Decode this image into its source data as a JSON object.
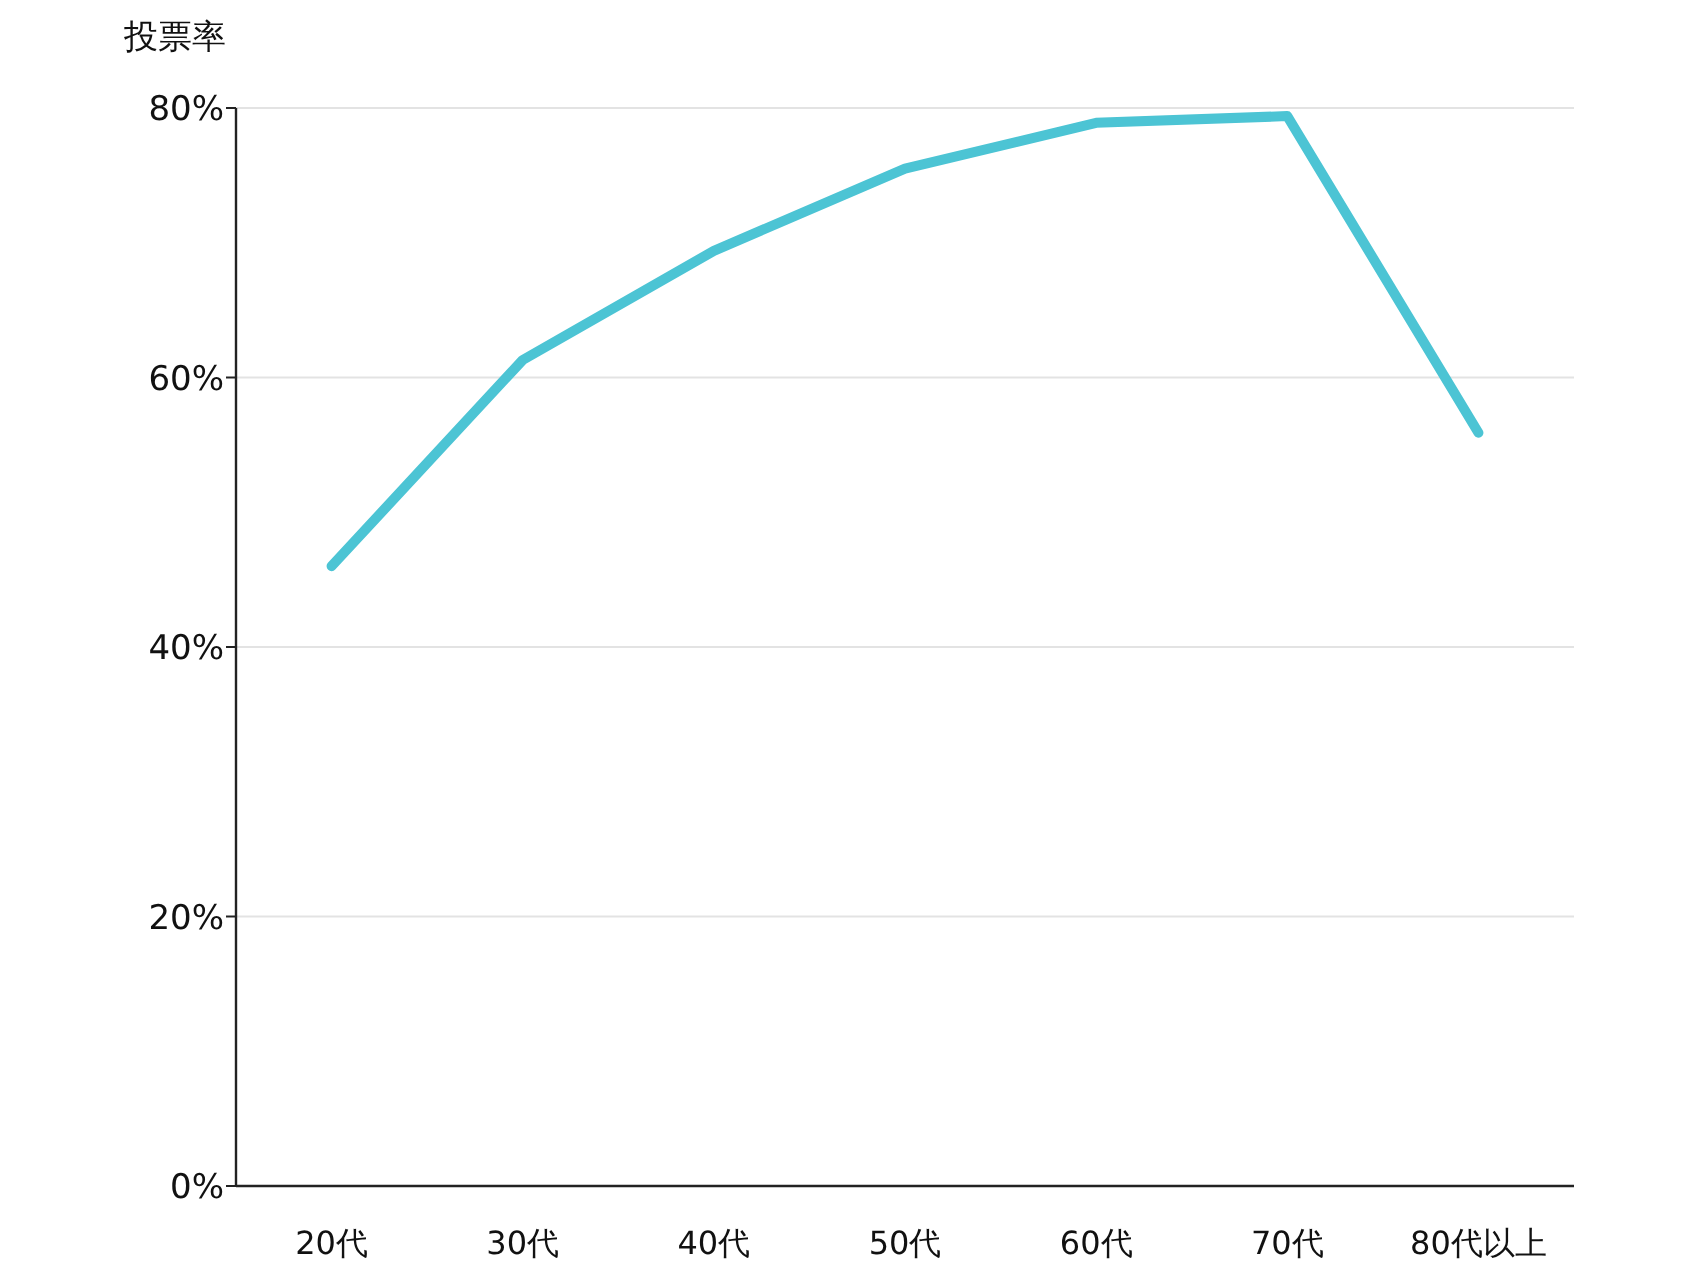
{
  "chart_data": {
    "type": "line",
    "ylabel": "投票率",
    "categories": [
      "20代",
      "30代",
      "40代",
      "50代",
      "60代",
      "70代",
      "80代以上"
    ],
    "series": [
      {
        "color": "#4cc4d4",
        "values": [
          46.0,
          61.3,
          69.4,
          75.5,
          78.9,
          79.4,
          55.9
        ]
      }
    ],
    "ylim": [
      0,
      80
    ],
    "yticks": [
      {
        "value": 0,
        "label": "0%"
      },
      {
        "value": 20,
        "label": "20%"
      },
      {
        "value": 40,
        "label": "40%"
      },
      {
        "value": 60,
        "label": "60%"
      },
      {
        "value": 80,
        "label": "80%"
      }
    ],
    "grid": "y"
  }
}
